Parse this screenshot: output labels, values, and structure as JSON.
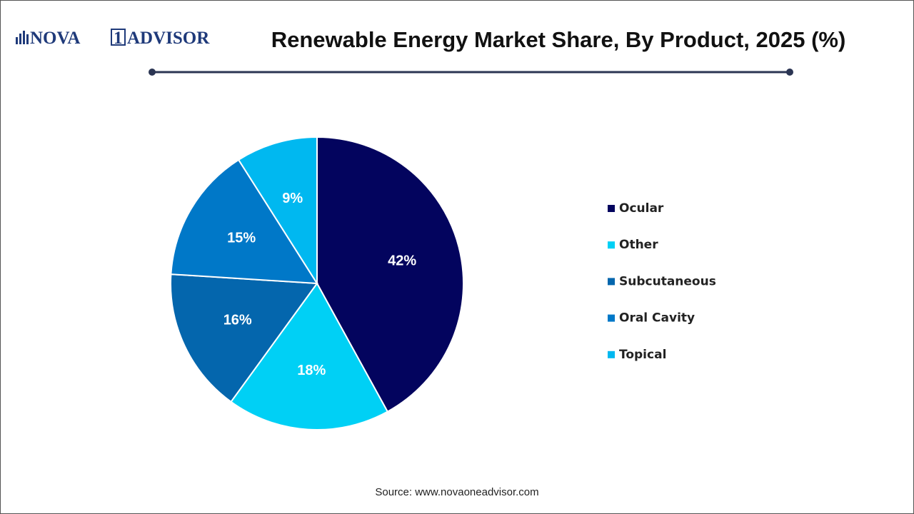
{
  "logo": [
    "NOVA",
    "1",
    "ADVISOR"
  ],
  "chart_data": {
    "type": "pie",
    "title": "Renewable Energy Market Share, By Product, 2025 (%)",
    "categories": [
      "Ocular",
      "Other",
      "Subcutaneous",
      "Oral Cavity",
      "Topical"
    ],
    "values": [
      42,
      18,
      16,
      15,
      9
    ],
    "value_labels": [
      "42%",
      "18%",
      "16%",
      "15%",
      "9%"
    ],
    "colors": [
      "#03045e",
      "#00d0f5",
      "#0466ad",
      "#0078c8",
      "#00b8f0"
    ]
  },
  "source": "Source: www.novaoneadvisor.com"
}
